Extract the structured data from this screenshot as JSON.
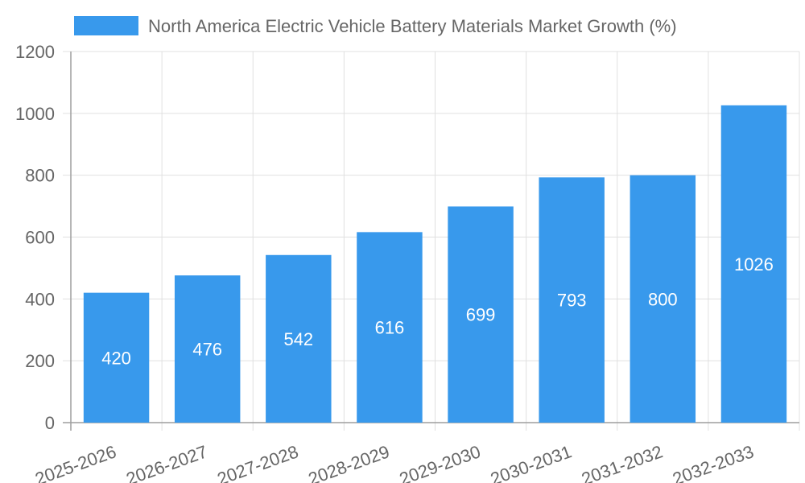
{
  "chart_data": {
    "type": "bar",
    "legend": {
      "label": "North America Electric Vehicle Battery Materials Market Growth (%)",
      "position": "top"
    },
    "categories": [
      "2025-2026",
      "2026-2027",
      "2027-2028",
      "2028-2029",
      "2029-2030",
      "2030-2031",
      "2031-2032",
      "2032-2033"
    ],
    "values": [
      420,
      476,
      542,
      616,
      699,
      793,
      800,
      1026
    ],
    "data_labels": [
      "420",
      "476",
      "542",
      "616",
      "699",
      "793",
      "800",
      "1026"
    ],
    "ylim": [
      0,
      1200
    ],
    "yticks": [
      0,
      200,
      400,
      600,
      800,
      1000,
      1200
    ],
    "grid": true,
    "bar_color": "#3899ec",
    "grid_color": "#e0e0e0",
    "axis_color": "#9e9e9e",
    "text_color": "#666666"
  }
}
